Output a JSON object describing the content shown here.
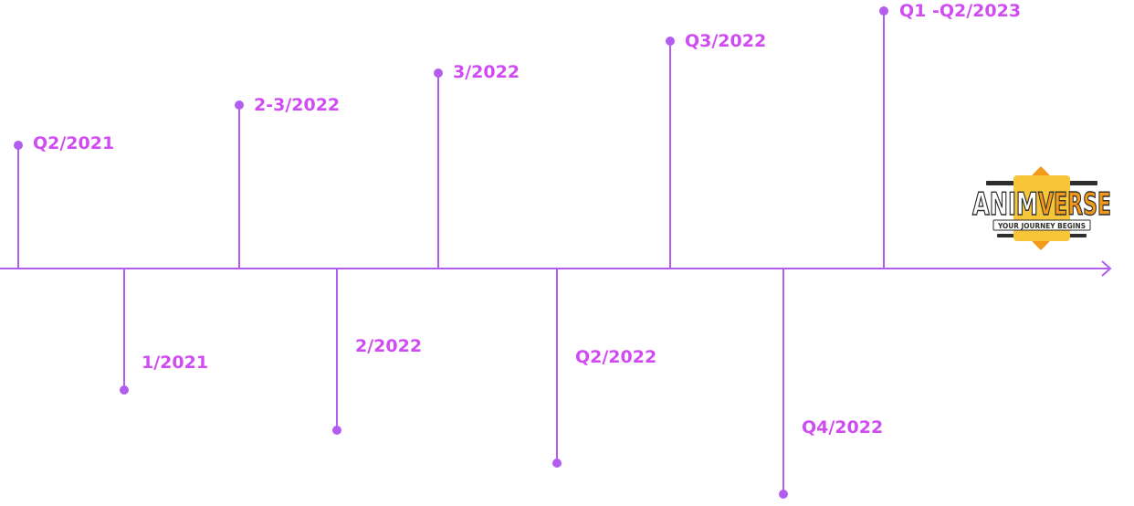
{
  "colors": {
    "line": "#b35df0",
    "label": "#d04cf2",
    "logo_dark": "#2e2e2e",
    "logo_orange": "#f39a1b",
    "logo_yellow": "#f7c53a"
  },
  "milestones": [
    {
      "label": "Q2/2021",
      "side": "above"
    },
    {
      "label": "1/2021",
      "side": "below"
    },
    {
      "label": "2-3/2022",
      "side": "above"
    },
    {
      "label": "2/2022",
      "side": "below"
    },
    {
      "label": "3/2022",
      "side": "above"
    },
    {
      "label": "Q2/2022",
      "side": "below"
    },
    {
      "label": "Q3/2022",
      "side": "above"
    },
    {
      "label": "Q4/2022",
      "side": "below"
    },
    {
      "label": "Q1 -Q2/2023",
      "side": "above"
    }
  ],
  "logo": {
    "part1": "ANIM",
    "part2": "VERSE",
    "tagline": "YOUR JOURNEY BEGINS"
  }
}
